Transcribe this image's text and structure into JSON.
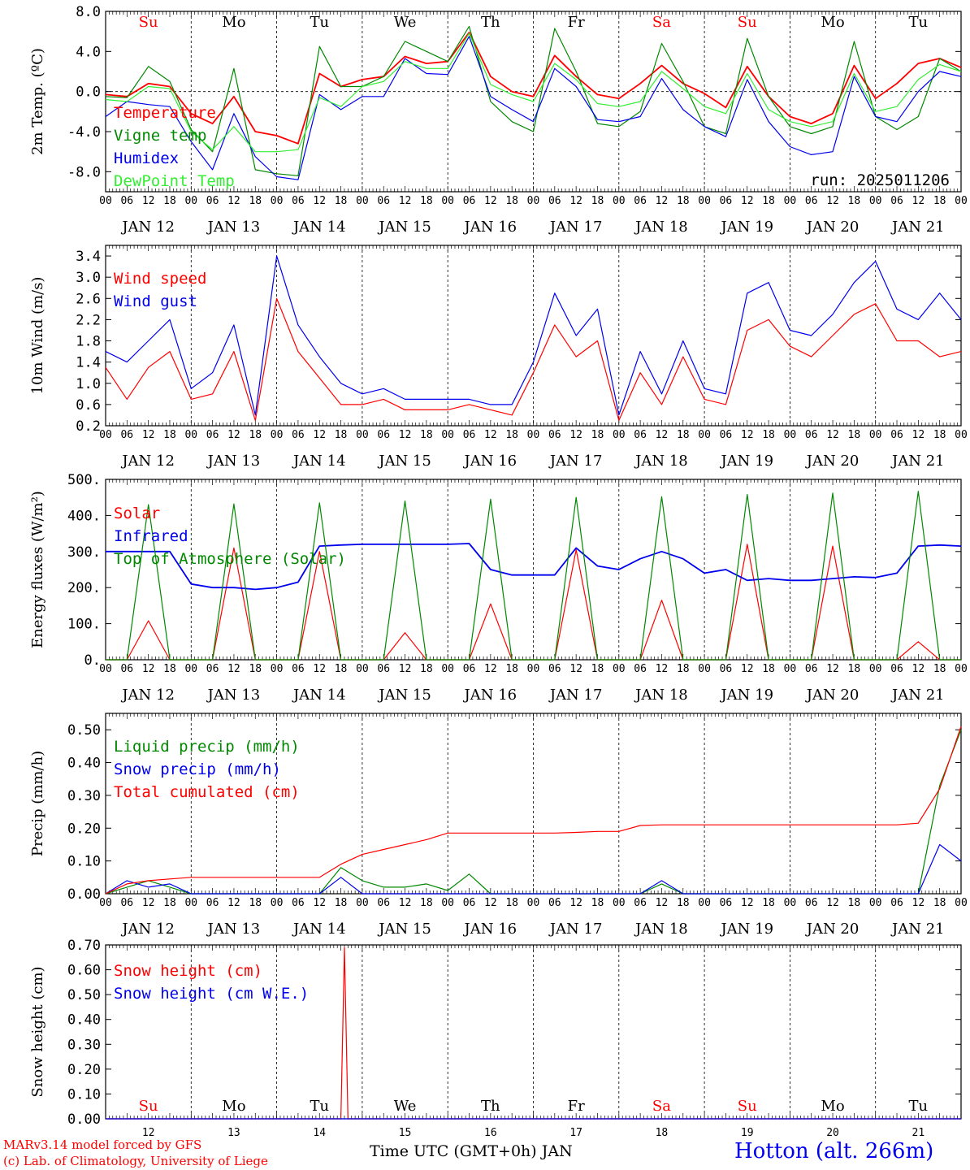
{
  "colors": {
    "red": "#ff0000",
    "green": "#008800",
    "blue": "#0000ee",
    "lightgreen": "#33ee33",
    "axis": "#000000",
    "weekend": "#ff0000"
  },
  "hour_tick_labels": [
    "00",
    "06",
    "12",
    "18"
  ],
  "days": [
    {
      "weekday": "Su",
      "date": "JAN 12",
      "num": "12",
      "weekend": true
    },
    {
      "weekday": "Mo",
      "date": "JAN 13",
      "num": "13",
      "weekend": false
    },
    {
      "weekday": "Tu",
      "date": "JAN 14",
      "num": "14",
      "weekend": false
    },
    {
      "weekday": "We",
      "date": "JAN 15",
      "num": "15",
      "weekend": false
    },
    {
      "weekday": "Th",
      "date": "JAN 16",
      "num": "16",
      "weekend": false
    },
    {
      "weekday": "Fr",
      "date": "JAN 17",
      "num": "17",
      "weekend": false
    },
    {
      "weekday": "Sa",
      "date": "JAN 18",
      "num": "18",
      "weekend": true
    },
    {
      "weekday": "Su",
      "date": "JAN 19",
      "num": "19",
      "weekend": true
    },
    {
      "weekday": "Mo",
      "date": "JAN 20",
      "num": "20",
      "weekend": false
    },
    {
      "weekday": "Tu",
      "date": "JAN 21",
      "num": "21",
      "weekend": false
    }
  ],
  "footer": {
    "model": "MARv3.14 model forced by GFS",
    "credit": "(c) Lab. of Climatology, University of Liege",
    "xlabel": "Time UTC (GMT+0h) JAN",
    "station": "Hotton (alt. 266m)"
  },
  "chart_data": [
    {
      "type": "line",
      "ylabel": "2m Temp. (ºC)",
      "ylim": [
        -10,
        8
      ],
      "yticks": [
        "8.0",
        "4.0",
        "0.0",
        "-4.0",
        "-8.0"
      ],
      "ytick_values": [
        8,
        4,
        0,
        -4,
        -8
      ],
      "zero_line": true,
      "run_label": "run: 2025011206",
      "x_hours": [
        0,
        6,
        12,
        18,
        24,
        30,
        36,
        42,
        48,
        54,
        60,
        66,
        72,
        78,
        84,
        90,
        96,
        102,
        108,
        114,
        120,
        126,
        132,
        138,
        144,
        150,
        156,
        162,
        168,
        174,
        180,
        186,
        192,
        198,
        204,
        210,
        216,
        222,
        228,
        234,
        240
      ],
      "series": [
        {
          "name": "Temperature",
          "color": "red",
          "values": [
            -0.3,
            -0.5,
            0.8,
            0.5,
            -2.2,
            -3.2,
            -0.5,
            -4.0,
            -4.4,
            -5.2,
            1.8,
            0.5,
            1.2,
            1.5,
            3.5,
            2.8,
            3.0,
            5.9,
            1.5,
            0.0,
            -0.5,
            3.6,
            1.5,
            -0.3,
            -0.7,
            0.8,
            2.6,
            0.8,
            -0.2,
            -1.6,
            2.5,
            -0.5,
            -2.5,
            -3.2,
            -2.2,
            2.6,
            -0.7,
            0.8,
            2.8,
            3.3,
            2.4
          ]
        },
        {
          "name": "Vigne temp",
          "color": "green",
          "values": [
            -0.5,
            -0.6,
            2.5,
            1.0,
            -3.8,
            -6.0,
            2.3,
            -7.8,
            -8.2,
            -8.4,
            4.5,
            0.5,
            0.5,
            1.5,
            5.0,
            4.0,
            3.0,
            6.5,
            -1.0,
            -3.0,
            -4.0,
            6.3,
            2.0,
            -3.2,
            -3.5,
            -2.0,
            4.8,
            1.0,
            -3.5,
            -4.2,
            5.3,
            -0.5,
            -3.5,
            -4.2,
            -3.5,
            5.0,
            -2.5,
            -3.8,
            -2.5,
            3.3,
            2.0
          ]
        },
        {
          "name": "Humidex",
          "color": "blue",
          "values": [
            -2.5,
            -1.0,
            -1.3,
            -1.5,
            -5.0,
            -7.8,
            -2.2,
            -6.5,
            -8.5,
            -8.8,
            -0.3,
            -1.8,
            -0.5,
            -0.5,
            3.3,
            1.8,
            1.7,
            5.5,
            -0.5,
            -1.8,
            -3.0,
            2.3,
            0.5,
            -2.8,
            -3.0,
            -2.5,
            1.3,
            -1.8,
            -3.5,
            -4.5,
            1.2,
            -3.0,
            -5.5,
            -6.3,
            -6.0,
            1.5,
            -2.5,
            -3.0,
            0.0,
            2.0,
            1.5
          ]
        },
        {
          "name": "DewPoint Temp",
          "color": "lightgreen",
          "values": [
            -0.8,
            -1.0,
            0.5,
            0.3,
            -4.0,
            -5.8,
            -3.5,
            -6.0,
            -6.0,
            -5.8,
            -0.6,
            -1.5,
            0.5,
            1.0,
            3.0,
            2.3,
            2.3,
            5.8,
            0.7,
            -0.3,
            -1.0,
            2.8,
            1.2,
            -1.2,
            -1.5,
            -1.0,
            2.0,
            0.3,
            -1.5,
            -2.2,
            1.8,
            -1.8,
            -3.0,
            -3.5,
            -3.0,
            1.8,
            -2.0,
            -1.5,
            1.2,
            2.7,
            2.0
          ]
        }
      ]
    },
    {
      "type": "line",
      "ylabel": "10m Wind (m/s)",
      "ylim": [
        0.2,
        3.6
      ],
      "yticks": [
        "3.4",
        "3.0",
        "2.6",
        "2.2",
        "1.8",
        "1.4",
        "1.0",
        "0.6",
        "0.2"
      ],
      "ytick_values": [
        3.4,
        3.0,
        2.6,
        2.2,
        1.8,
        1.4,
        1.0,
        0.6,
        0.2
      ],
      "x_hours": [
        0,
        6,
        12,
        18,
        24,
        30,
        36,
        42,
        48,
        54,
        60,
        66,
        72,
        78,
        84,
        90,
        96,
        102,
        108,
        114,
        120,
        126,
        132,
        138,
        144,
        150,
        156,
        162,
        168,
        174,
        180,
        186,
        192,
        198,
        204,
        210,
        216,
        222,
        228,
        234,
        240
      ],
      "series": [
        {
          "name": "Wind speed",
          "color": "red",
          "values": [
            1.3,
            0.7,
            1.3,
            1.6,
            0.7,
            0.8,
            1.6,
            0.3,
            2.6,
            1.6,
            1.1,
            0.6,
            0.6,
            0.7,
            0.5,
            0.5,
            0.5,
            0.6,
            0.5,
            0.4,
            1.2,
            2.1,
            1.5,
            1.8,
            0.3,
            1.2,
            0.6,
            1.5,
            0.7,
            0.6,
            2.0,
            2.2,
            1.7,
            1.5,
            1.9,
            2.3,
            2.5,
            1.8,
            1.8,
            1.5,
            1.6
          ]
        },
        {
          "name": "Wind gust",
          "color": "blue",
          "values": [
            1.6,
            1.4,
            1.8,
            2.2,
            0.9,
            1.2,
            2.1,
            0.4,
            3.4,
            2.1,
            1.5,
            1.0,
            0.8,
            0.9,
            0.7,
            0.7,
            0.7,
            0.7,
            0.6,
            0.6,
            1.4,
            2.7,
            1.9,
            2.4,
            0.4,
            1.6,
            0.8,
            1.8,
            0.9,
            0.8,
            2.7,
            2.9,
            2.0,
            1.9,
            2.3,
            2.9,
            3.3,
            2.4,
            2.2,
            2.7,
            2.2
          ]
        }
      ]
    },
    {
      "type": "line",
      "ylabel": "Energy fluxes (W/m²)",
      "ylim": [
        0,
        500
      ],
      "yticks": [
        "500.",
        "400.",
        "300.",
        "200.",
        "100.",
        "0."
      ],
      "ytick_values": [
        500,
        400,
        300,
        200,
        100,
        0
      ],
      "x_hours": [
        0,
        6,
        12,
        18,
        24,
        30,
        36,
        42,
        48,
        54,
        60,
        66,
        72,
        78,
        84,
        90,
        96,
        102,
        108,
        114,
        120,
        126,
        132,
        138,
        144,
        150,
        156,
        162,
        168,
        174,
        180,
        186,
        192,
        198,
        204,
        210,
        216,
        222,
        228,
        234,
        240
      ],
      "series": [
        {
          "name": "Solar",
          "color": "red",
          "values": [
            0,
            0,
            108,
            0,
            0,
            0,
            310,
            0,
            0,
            0,
            300,
            0,
            0,
            0,
            75,
            0,
            0,
            0,
            155,
            0,
            0,
            0,
            305,
            0,
            0,
            0,
            165,
            0,
            0,
            0,
            320,
            0,
            0,
            0,
            315,
            0,
            0,
            0,
            50,
            0,
            0
          ]
        },
        {
          "name": "Infrared",
          "color": "blue",
          "values": [
            300,
            300,
            300,
            300,
            210,
            200,
            200,
            195,
            200,
            215,
            315,
            318,
            320,
            320,
            320,
            320,
            320,
            322,
            250,
            235,
            235,
            235,
            310,
            260,
            250,
            280,
            300,
            280,
            240,
            250,
            220,
            225,
            220,
            220,
            225,
            230,
            228,
            240,
            315,
            318,
            315
          ]
        },
        {
          "name": "Top of Atmosphere (Solar)",
          "color": "green",
          "values": [
            0,
            0,
            430,
            0,
            0,
            0,
            432,
            0,
            0,
            0,
            435,
            0,
            0,
            0,
            440,
            0,
            0,
            0,
            445,
            0,
            0,
            0,
            450,
            0,
            0,
            0,
            452,
            0,
            0,
            0,
            458,
            0,
            0,
            0,
            462,
            0,
            0,
            0,
            467,
            0,
            0
          ]
        }
      ]
    },
    {
      "type": "line",
      "ylabel": "Precip (mm/h)",
      "ylim": [
        0,
        0.55
      ],
      "yticks": [
        "0.50",
        "0.40",
        "0.30",
        "0.20",
        "0.10",
        "0.00"
      ],
      "ytick_values": [
        0.5,
        0.4,
        0.3,
        0.2,
        0.1,
        0.0
      ],
      "x_hours": [
        0,
        6,
        12,
        18,
        24,
        30,
        36,
        42,
        48,
        54,
        60,
        66,
        72,
        78,
        84,
        90,
        96,
        102,
        108,
        114,
        120,
        126,
        132,
        138,
        144,
        150,
        156,
        162,
        168,
        174,
        180,
        186,
        192,
        198,
        204,
        210,
        216,
        222,
        228,
        234,
        240
      ],
      "series": [
        {
          "name": "Liquid precip (mm/h)",
          "color": "green",
          "values": [
            0.0,
            0.02,
            0.04,
            0.02,
            0.0,
            0.0,
            0.0,
            0.0,
            0.0,
            0.0,
            0.0,
            0.08,
            0.04,
            0.02,
            0.02,
            0.03,
            0.01,
            0.06,
            0.0,
            0.0,
            0.0,
            0.0,
            0.0,
            0.0,
            0.0,
            0.0,
            0.03,
            0.0,
            0.0,
            0.0,
            0.0,
            0.0,
            0.0,
            0.0,
            0.0,
            0.0,
            0.0,
            0.0,
            0.0,
            0.33,
            0.5
          ]
        },
        {
          "name": "Snow precip (mm/h)",
          "color": "blue",
          "values": [
            0.0,
            0.04,
            0.02,
            0.03,
            0.0,
            0.0,
            0.0,
            0.0,
            0.0,
            0.0,
            0.0,
            0.05,
            0.0,
            0.0,
            0.0,
            0.0,
            0.0,
            0.0,
            0.0,
            0.0,
            0.0,
            0.0,
            0.0,
            0.0,
            0.0,
            0.0,
            0.04,
            0.0,
            0.0,
            0.0,
            0.0,
            0.0,
            0.0,
            0.0,
            0.0,
            0.0,
            0.0,
            0.0,
            0.0,
            0.15,
            0.1
          ]
        },
        {
          "name": "Total cumulated (cm)",
          "color": "red",
          "values": [
            0.0,
            0.03,
            0.04,
            0.045,
            0.05,
            0.05,
            0.05,
            0.05,
            0.05,
            0.05,
            0.05,
            0.09,
            0.12,
            0.135,
            0.15,
            0.165,
            0.185,
            0.185,
            0.185,
            0.185,
            0.185,
            0.185,
            0.187,
            0.19,
            0.19,
            0.208,
            0.21,
            0.21,
            0.21,
            0.21,
            0.21,
            0.21,
            0.21,
            0.21,
            0.21,
            0.21,
            0.21,
            0.21,
            0.215,
            0.32,
            0.51
          ]
        }
      ]
    },
    {
      "type": "line",
      "ylabel": "Snow height (cm)",
      "ylim": [
        0,
        0.7
      ],
      "yticks": [
        "0.70",
        "0.60",
        "0.50",
        "0.40",
        "0.30",
        "0.20",
        "0.10",
        "0.00"
      ],
      "ytick_values": [
        0.7,
        0.6,
        0.5,
        0.4,
        0.3,
        0.2,
        0.1,
        0.0
      ],
      "x_hours": [
        0,
        66,
        67,
        68,
        240
      ],
      "series": [
        {
          "name": "Snow height (cm)",
          "color": "red",
          "values": [
            0,
            0,
            0.69,
            0,
            0
          ]
        },
        {
          "name": "Snow height (cm W.E.)",
          "color": "blue",
          "values": [
            0,
            0,
            0,
            0,
            0
          ]
        }
      ]
    }
  ]
}
